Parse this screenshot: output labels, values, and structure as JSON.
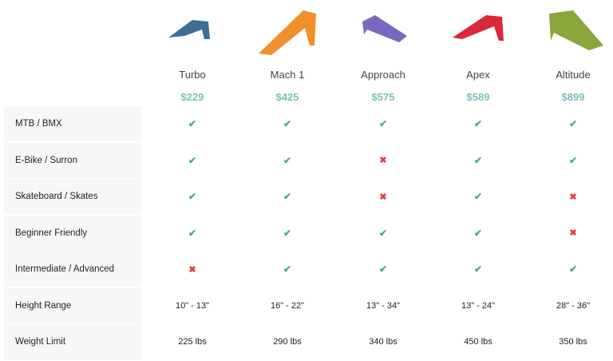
{
  "products": [
    {
      "name": "Turbo",
      "price": "$229",
      "color": "#3d6f96"
    },
    {
      "name": "Mach 1",
      "price": "$425",
      "color": "#f0902a"
    },
    {
      "name": "Approach",
      "price": "$575",
      "color": "#7a68c0"
    },
    {
      "name": "Apex",
      "price": "$589",
      "color": "#d8283a"
    },
    {
      "name": "Altitude",
      "price": "$899",
      "color": "#8aa53a"
    }
  ],
  "rows": [
    {
      "label": "MTB / BMX",
      "values": [
        true,
        true,
        true,
        true,
        true
      ]
    },
    {
      "label": "E-Bike / Surron",
      "values": [
        true,
        true,
        false,
        true,
        true
      ]
    },
    {
      "label": "Skateboard / Skates",
      "values": [
        true,
        true,
        false,
        true,
        false
      ]
    },
    {
      "label": "Beginner Friendly",
      "values": [
        true,
        true,
        true,
        true,
        false
      ]
    },
    {
      "label": "Intermediate / Advanced",
      "values": [
        false,
        true,
        true,
        true,
        true
      ]
    },
    {
      "label": "Height Range",
      "values": [
        "10\" - 13\"",
        "16\" - 22\"",
        "13\" - 34\"",
        "13\" - 24\"",
        "28\" - 36\""
      ]
    },
    {
      "label": "Weight Limit",
      "values": [
        "225 lbs",
        "290 lbs",
        "340 lbs",
        "450 lbs",
        "350 lbs"
      ]
    }
  ],
  "icons": {
    "yes": "checkmark-icon",
    "no": "cross-icon"
  },
  "colors": {
    "check": "#4aa88a",
    "cross": "#e04040",
    "price": "#7bbfb9"
  }
}
